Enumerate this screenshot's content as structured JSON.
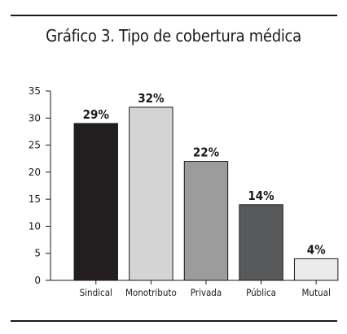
{
  "chart_data": {
    "type": "bar",
    "title": "Gráfico 3. Tipo de cobertura médica",
    "xlabel": "",
    "ylabel": "",
    "categories": [
      "Sindical",
      "Monotributo",
      "Privada",
      "Pública",
      "Mutual"
    ],
    "values": [
      29,
      32,
      22,
      14,
      4
    ],
    "data_labels": [
      "29%",
      "32%",
      "22%",
      "14%",
      "4%"
    ],
    "colors": [
      "#231f20",
      "#d4d4d4",
      "#9c9c9c",
      "#58595b",
      "#ebebeb"
    ],
    "ylim": [
      0,
      35
    ],
    "yticks": [
      0,
      5,
      10,
      15,
      20,
      25,
      30,
      35
    ],
    "grid": false,
    "legend": "none"
  }
}
